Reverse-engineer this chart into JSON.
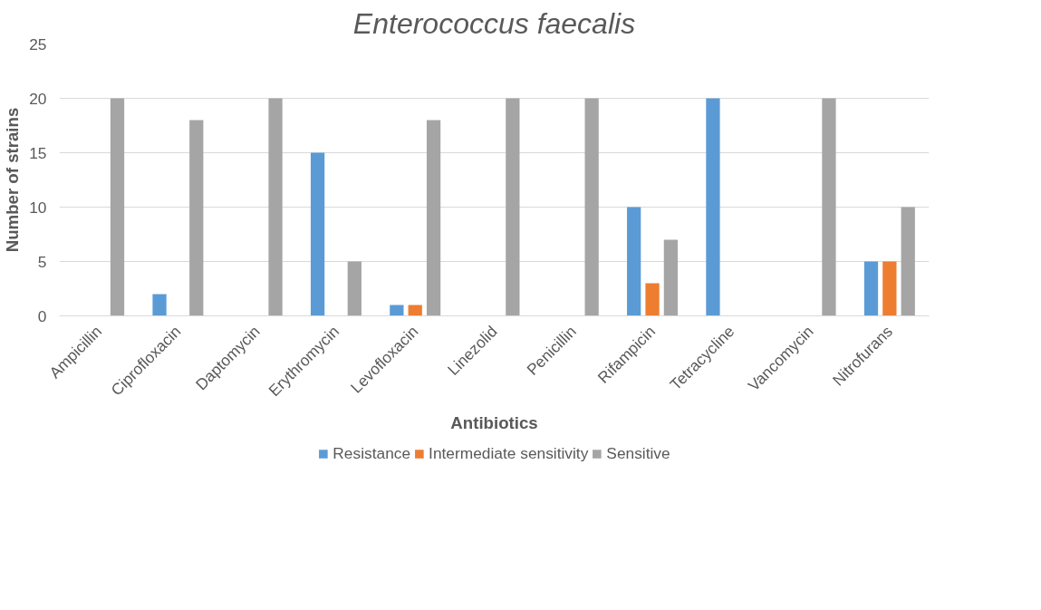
{
  "chart_data": {
    "type": "bar",
    "title": "Enterococcus faecalis",
    "xlabel": "Antibiotics",
    "ylabel": "Number of strains",
    "categories": [
      "Ampicillin",
      "Ciprofloxacin",
      "Daptomycin",
      "Erythromycin",
      "Levofloxacin",
      "Linezolid",
      "Penicillin",
      "Rifampicin",
      "Tetracycline",
      "Vancomycin",
      "Nitrofurans"
    ],
    "series": [
      {
        "name": "Resistance",
        "color": "#5b9bd5",
        "values": [
          0,
          2,
          0,
          15,
          1,
          0,
          0,
          10,
          20,
          0,
          5
        ]
      },
      {
        "name": "Intermediate sensitivity",
        "color": "#ed7d31",
        "values": [
          0,
          0,
          0,
          0,
          1,
          0,
          0,
          3,
          0,
          0,
          5
        ]
      },
      {
        "name": "Sensitive",
        "color": "#a5a5a5",
        "values": [
          20,
          18,
          20,
          5,
          18,
          20,
          20,
          7,
          0,
          20,
          10
        ]
      }
    ],
    "ylim": [
      0,
      25
    ],
    "yticks": [
      0,
      5,
      10,
      15,
      20,
      25
    ],
    "grid": "y",
    "legend": "bottom"
  }
}
